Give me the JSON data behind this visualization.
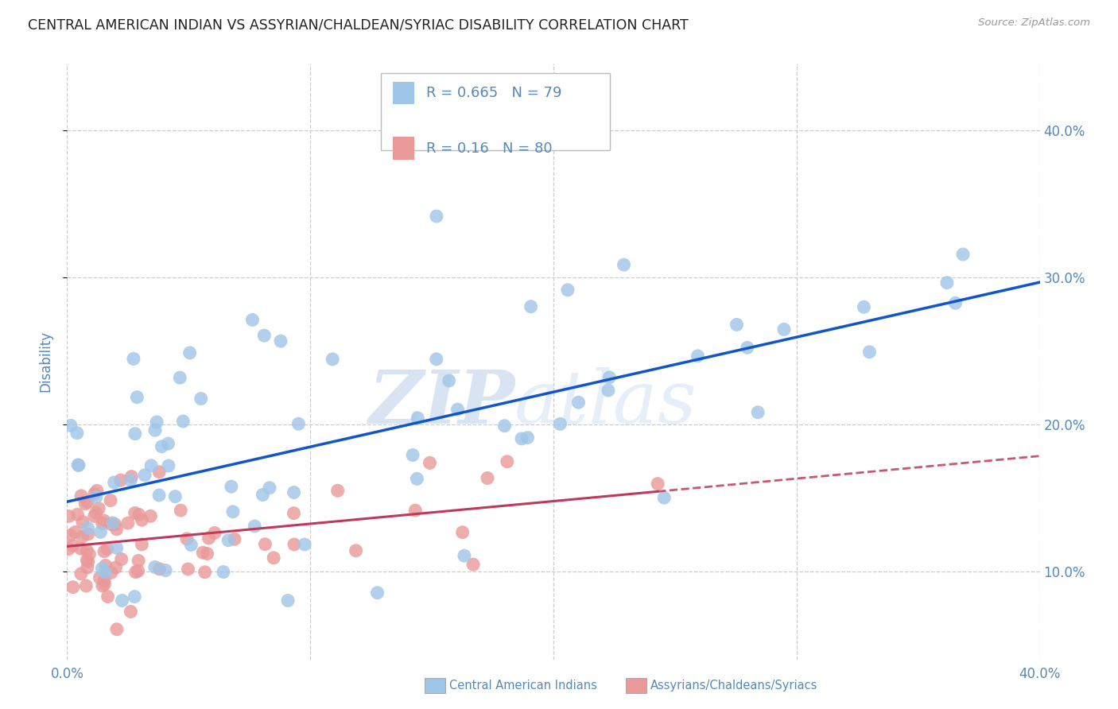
{
  "title": "CENTRAL AMERICAN INDIAN VS ASSYRIAN/CHALDEAN/SYRIAC DISABILITY CORRELATION CHART",
  "source": "Source: ZipAtlas.com",
  "ylabel": "Disability",
  "xlim": [
    0.0,
    0.4
  ],
  "ylim": [
    0.04,
    0.445
  ],
  "xtick_vals": [
    0.0,
    0.1,
    0.2,
    0.3,
    0.4
  ],
  "xticklabels_sparse": [
    "0.0%",
    "",
    "",
    "",
    "40.0%"
  ],
  "ytick_vals": [
    0.1,
    0.2,
    0.3,
    0.4
  ],
  "yticklabels": [
    "10.0%",
    "20.0%",
    "30.0%",
    "40.0%"
  ],
  "blue_R": 0.665,
  "blue_N": 79,
  "pink_R": 0.16,
  "pink_N": 80,
  "blue_color": "#9fc5e8",
  "pink_color": "#ea9999",
  "blue_line_color": "#1155cc",
  "pink_line_color": "#c0395a",
  "legend_blue_label": "Central American Indians",
  "legend_pink_label": "Assyrians/Chaldeans/Syriacs",
  "watermark_zip": "ZIP",
  "watermark_atlas": "atlas",
  "background_color": "#ffffff",
  "grid_color": "#cccccc",
  "title_color": "#222222",
  "tick_color": "#5588bb"
}
